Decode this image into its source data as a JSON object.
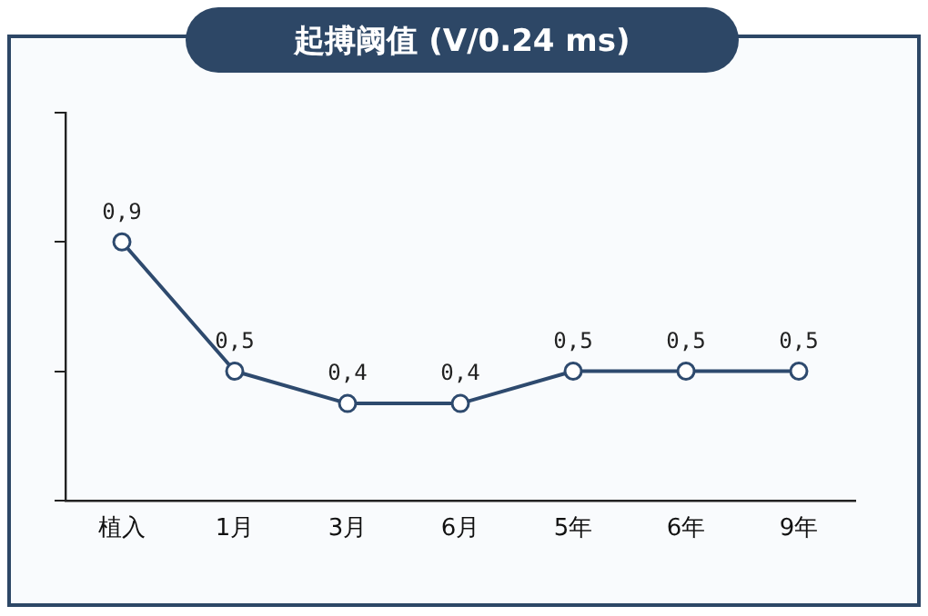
{
  "chart_data": {
    "type": "line",
    "title": "起搏阈值 (V/0.24 ms)",
    "categories": [
      "植入",
      "1月",
      "3月",
      "6月",
      "5年",
      "6年",
      "9年"
    ],
    "series": [
      {
        "color": "#2e4a6e",
        "values": [
          0.9,
          0.5,
          0.4,
          0.4,
          0.5,
          0.5,
          0.5
        ],
        "value_labels": [
          "0,9",
          "0,5",
          "0,4",
          "0,4",
          "0,5",
          "0,5",
          "0,5"
        ]
      }
    ],
    "ylim": [
      0.1,
      1.3
    ],
    "yticks": [
      {
        "value": 0.1,
        "label": null
      },
      {
        "value": 0.5,
        "label": null
      },
      {
        "value": 0.9,
        "label": null
      },
      {
        "value": 1.3,
        "label": null
      }
    ],
    "tick_labels": "x",
    "grid": false,
    "legend": false,
    "marker": "circle",
    "line_style": "solid"
  }
}
